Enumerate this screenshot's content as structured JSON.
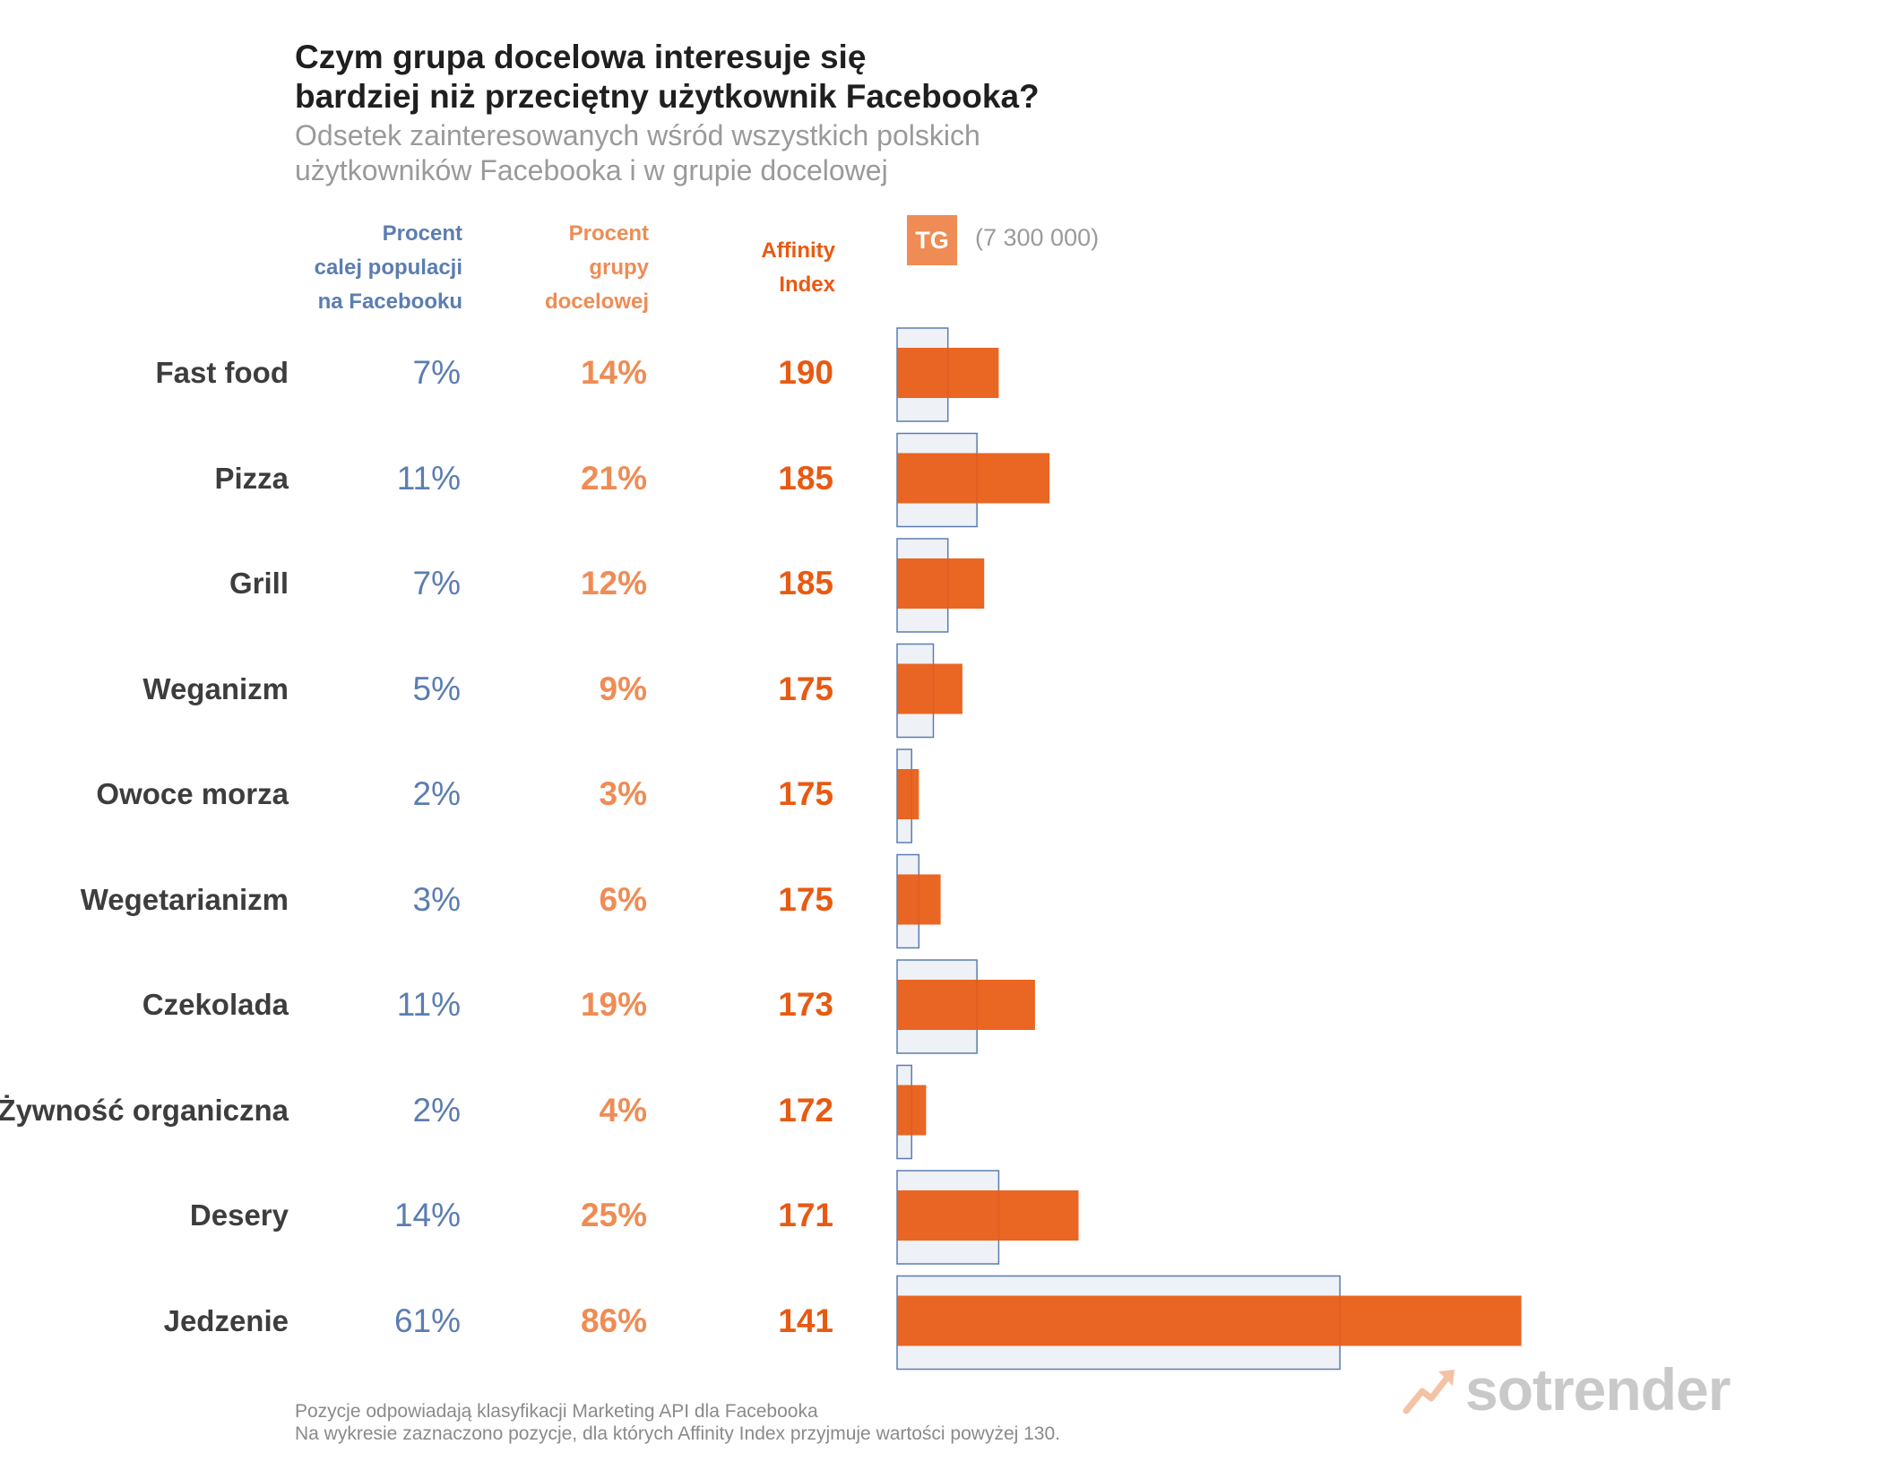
{
  "header": {
    "title": "Czym grupa docelowa interesuje się\nbardziej niż przeciętny użytkownik Facebooka?",
    "subtitle": "Odsetek zainteresowanych wśród wszystkich polskich\nużytkowników Facebooka i w grupie docelowej"
  },
  "columns": {
    "population": "Procent\ncalej populacji\nna Facebooku",
    "target": "Procent\ngrupy\ndocelowej",
    "affinity": "Affinity\nIndex"
  },
  "legend": {
    "tg_label": "TG",
    "tg_size": "(7 300 000)"
  },
  "colors": {
    "population": "#5b7db1",
    "target": "#e85a12",
    "target_light": "#ef8c55",
    "bar_fill": "#eef1f6"
  },
  "chart_data": {
    "type": "bar",
    "orientation": "horizontal",
    "categories": [
      "Fast food",
      "Pizza",
      "Grill",
      "Weganizm",
      "Owoce morza",
      "Wegetarianizm",
      "Czekolada",
      "Żywność organiczna",
      "Desery",
      "Jedzenie"
    ],
    "series": [
      {
        "name": "Procent calej populacji na Facebooku",
        "values": [
          7,
          11,
          7,
          5,
          2,
          3,
          11,
          2,
          14,
          61
        ]
      },
      {
        "name": "Procent grupy docelowej",
        "values": [
          14,
          21,
          12,
          9,
          3,
          6,
          19,
          4,
          25,
          86
        ]
      },
      {
        "name": "Affinity Index",
        "values": [
          190,
          185,
          185,
          175,
          175,
          175,
          173,
          172,
          171,
          141
        ]
      }
    ],
    "population_labels": [
      "7%",
      "11%",
      "7%",
      "5%",
      "2%",
      "3%",
      "11%",
      "2%",
      "14%",
      "61%"
    ],
    "target_labels": [
      "14%",
      "21%",
      "12%",
      "9%",
      "3%",
      "6%",
      "19%",
      "4%",
      "25%",
      "86%"
    ],
    "affinity_labels": [
      "190",
      "185",
      "185",
      "175",
      "175",
      "175",
      "173",
      "172",
      "171",
      "141"
    ],
    "unit": "%",
    "xlim": [
      0,
      100
    ]
  },
  "footer": {
    "note": "Pozycje odpowiadają klasyfikacji Marketing API dla Facebooka\nNa wykresie zaznaczono pozycje, dla których Affinity Index przyjmuje wartości powyżej 130."
  },
  "brand": {
    "name": "sotrender"
  }
}
